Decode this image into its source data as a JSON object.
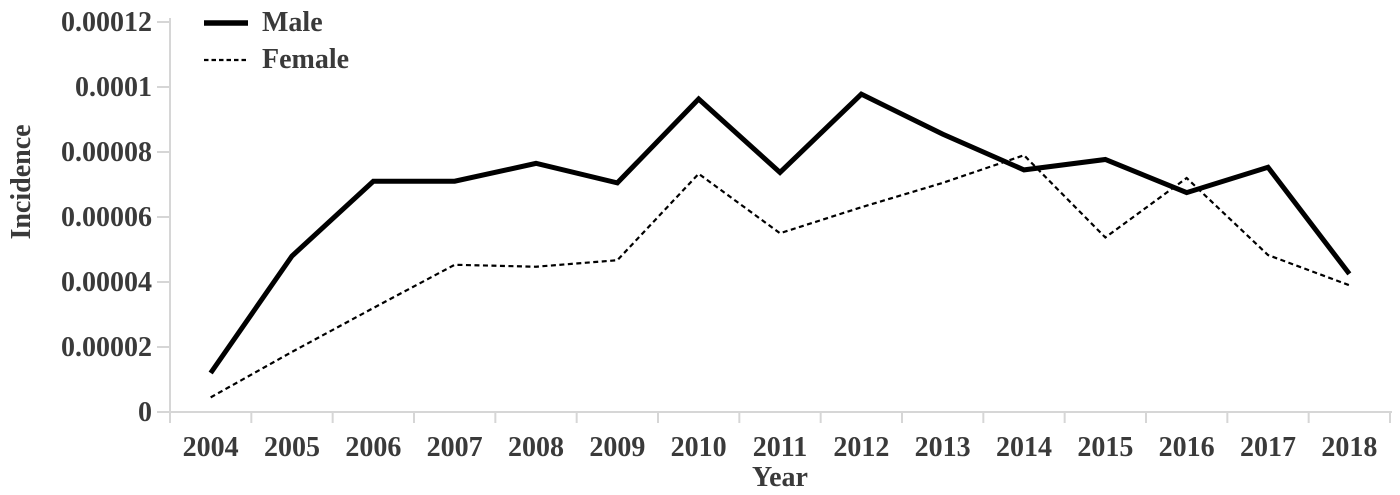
{
  "figure": {
    "background": "#ffffff",
    "text_color": "#3a3a3a",
    "axis_color": "#d6d6d6",
    "line_color": "#000000"
  },
  "chart_data": {
    "type": "line",
    "title": "",
    "xlabel": "Year",
    "ylabel": "Incidence",
    "ylim": [
      0,
      0.00012
    ],
    "grid": "off",
    "legend_position": "top-left",
    "categories": [
      "2004",
      "2005",
      "2006",
      "2007",
      "2008",
      "2009",
      "2010",
      "2011",
      "2012",
      "2013",
      "2014",
      "2015",
      "2016",
      "2017",
      "2018"
    ],
    "y_ticks": [
      {
        "value": 0,
        "label": "0"
      },
      {
        "value": 2e-05,
        "label": "0.00002"
      },
      {
        "value": 4e-05,
        "label": "0.00004"
      },
      {
        "value": 6e-05,
        "label": "0.00006"
      },
      {
        "value": 8e-05,
        "label": "0.00008"
      },
      {
        "value": 0.0001,
        "label": "0.0001"
      },
      {
        "value": 0.00012,
        "label": "0.00012"
      }
    ],
    "series": [
      {
        "name": "Male",
        "style": "solid",
        "stroke_width": 5,
        "values": [
          1.2e-05,
          4.8e-05,
          7.1e-05,
          7.1e-05,
          7.65e-05,
          7.05e-05,
          9.63e-05,
          7.37e-05,
          9.78e-05,
          8.55e-05,
          7.45e-05,
          7.77e-05,
          6.75e-05,
          7.53e-05,
          4.25e-05
        ]
      },
      {
        "name": "Female",
        "style": "dashed",
        "stroke_width": 2.2,
        "values": [
          4.5e-06,
          1.85e-05,
          3.2e-05,
          4.53e-05,
          4.47e-05,
          4.67e-05,
          7.33e-05,
          5.5e-05,
          6.3e-05,
          7.05e-05,
          7.9e-05,
          5.37e-05,
          7.2e-05,
          4.83e-05,
          3.9e-05
        ]
      }
    ]
  }
}
